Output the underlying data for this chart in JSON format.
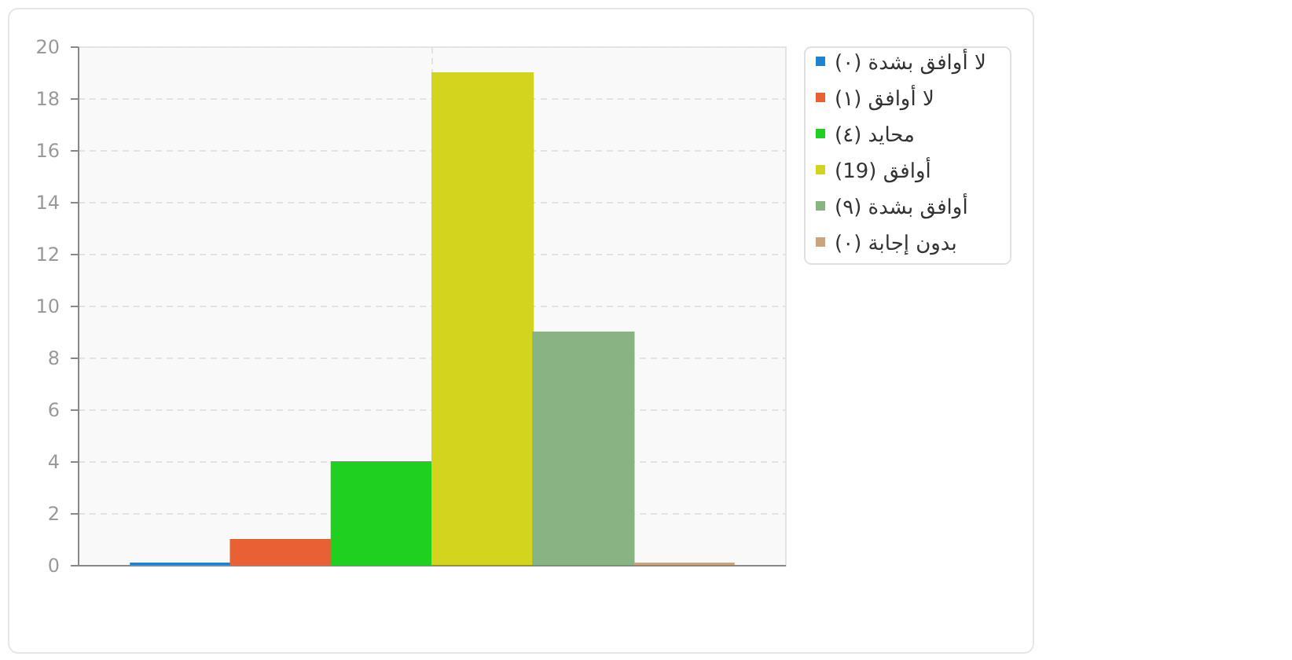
{
  "chart_data": {
    "type": "bar",
    "categories": [
      null
    ],
    "series": [
      {
        "name": "لا أوافق بشدة (٠)",
        "color": "#1f82d0",
        "values": [
          0
        ]
      },
      {
        "name": "لا أوافق (١)",
        "color": "#e86033",
        "values": [
          1
        ]
      },
      {
        "name": "محايد (٤)",
        "color": "#20d020",
        "values": [
          4
        ]
      },
      {
        "name": "أوافق (19)",
        "color": "#d2d41e",
        "values": [
          19
        ]
      },
      {
        "name": "أوافق بشدة (٩)",
        "color": "#89b383",
        "values": [
          9
        ]
      },
      {
        "name": "بدون إجابة (٠)",
        "color": "#c9a47e",
        "values": [
          0
        ]
      }
    ],
    "ylim": [
      0,
      20
    ],
    "yticks": [
      0,
      2,
      4,
      6,
      8,
      10,
      12,
      14,
      16,
      18,
      20
    ],
    "grid": true,
    "legend": "top right"
  }
}
